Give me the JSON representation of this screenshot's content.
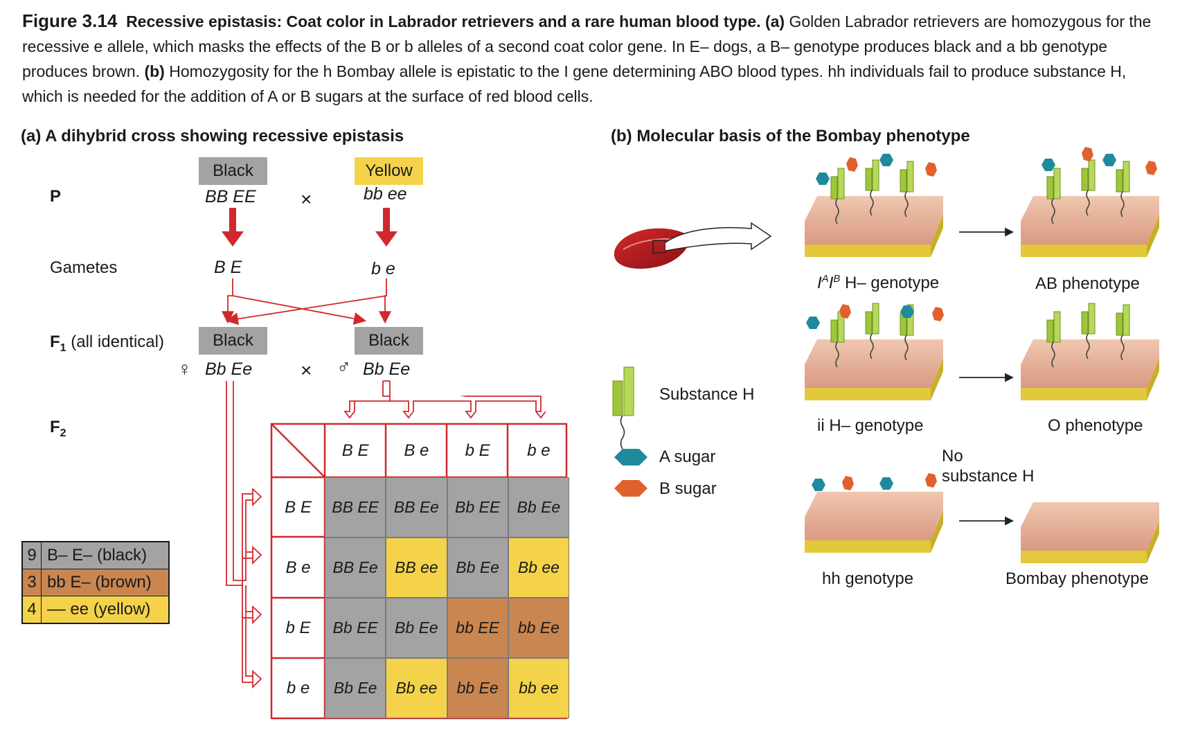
{
  "caption": {
    "figure_label": "Figure 3.14",
    "title": "Recessive epistasis: Coat color in Labrador retrievers and a rare human blood type.",
    "part_a_tag": "(a)",
    "part_a_text": "Golden Labrador retrievers are homozygous for the recessive e allele, which masks the effects of the B or b alleles of a second coat color gene. In E– dogs, a B– genotype produces black and a bb genotype produces brown.",
    "part_b_tag": "(b)",
    "part_b_text": "Homozygosity for the h Bombay allele is epistatic to the I gene determining ABO blood types. hh individuals fail to produce substance H, which is needed for the addition of A or B sugars at the surface of red blood cells."
  },
  "panel_a": {
    "title": "(a)  A dihybrid cross showing recessive epistasis",
    "rows": {
      "p": "P",
      "gametes": "Gametes",
      "f1": "F",
      "f1_sub": "1",
      "f1_note": "(all identical)",
      "f2": "F",
      "f2_sub": "2"
    },
    "parent1": {
      "phenotype": "Black",
      "genotype": "BB EE",
      "gamete": "B E"
    },
    "parent2": {
      "phenotype": "Yellow",
      "genotype": "bb ee",
      "gamete": "b e"
    },
    "cross_symbol": "×",
    "f1_female": {
      "phenotype": "Black",
      "symbol": "♀",
      "genotype": "Bb Ee"
    },
    "f1_male": {
      "phenotype": "Black",
      "symbol": "♂",
      "genotype": "Bb Ee"
    },
    "punnett": {
      "col_gametes": [
        "B E",
        "B e",
        "b E",
        "b e"
      ],
      "row_gametes": [
        "B E",
        "B e",
        "b E",
        "b e"
      ],
      "cells": [
        [
          "BB EE",
          "BB Ee",
          "Bb EE",
          "Bb Ee"
        ],
        [
          "BB Ee",
          "BB ee",
          "Bb Ee",
          "Bb ee"
        ],
        [
          "Bb EE",
          "Bb Ee",
          "bb EE",
          "bb Ee"
        ],
        [
          "Bb Ee",
          "Bb ee",
          "bb Ee",
          "bb ee"
        ]
      ],
      "colors": [
        [
          "black",
          "black",
          "black",
          "black"
        ],
        [
          "black",
          "yellow",
          "black",
          "yellow"
        ],
        [
          "black",
          "black",
          "brown",
          "brown"
        ],
        [
          "black",
          "yellow",
          "brown",
          "yellow"
        ]
      ]
    },
    "legend": [
      {
        "count": "9",
        "text": "B– E– (black)",
        "color": "#a3a3a3"
      },
      {
        "count": "3",
        "text": "bb E– (brown)",
        "color": "#c98650"
      },
      {
        "count": "4",
        "text": "–– ee (yellow)",
        "color": "#f4d34a"
      }
    ]
  },
  "panel_b": {
    "title": "(b)  Molecular basis of the Bombay phenotype",
    "genotype_1": "IᴬIᴮ H– genotype",
    "genotype_1_parts": {
      "a": "I",
      "a_sup": "A",
      "b": "I",
      "b_sup": "B",
      "rest": " H– genotype"
    },
    "phenotype_1": "AB phenotype",
    "genotype_2": "ii H– genotype",
    "phenotype_2": "O phenotype",
    "no_substance": [
      "No",
      "substance H"
    ],
    "genotype_3": "hh genotype",
    "phenotype_3": "Bombay phenotype",
    "key": {
      "substance_h": "Substance H",
      "a_sugar": "A sugar",
      "b_sugar": "B sugar"
    },
    "colors": {
      "a_sugar": "#1e8a9c",
      "b_sugar": "#e0612e",
      "substance": "#9fc63b",
      "membrane": "#e7b39a",
      "lipid": "#e2c83a",
      "rbc": "#b5181c"
    }
  },
  "colors": {
    "black_box": "#a3a3a3",
    "yellow_box": "#f4d34a",
    "brown_box": "#c98650",
    "arrow_red": "#d0282c"
  }
}
